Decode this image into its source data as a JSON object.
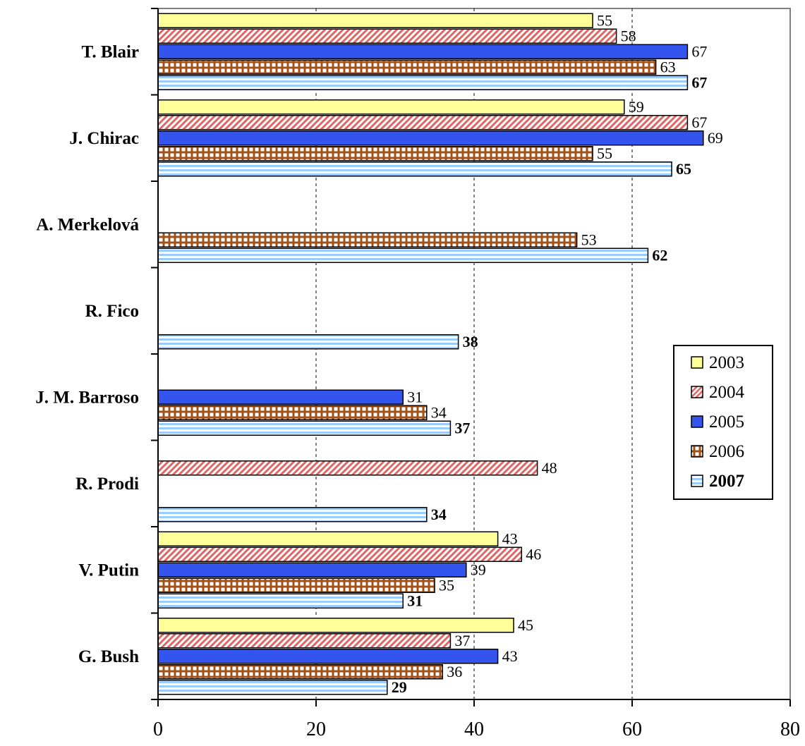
{
  "chart_data": {
    "type": "bar",
    "orientation": "horizontal",
    "title": "",
    "xlabel": "",
    "ylabel": "",
    "xlim": [
      0,
      80
    ],
    "x_ticks": [
      "0",
      "20",
      "40",
      "60",
      "80"
    ],
    "grid": "vertical dashed lines at 20, 40, 60",
    "legend_position": "right",
    "categories": [
      "T. Blair",
      "J. Chirac",
      "A. Merkelová",
      "R. Fico",
      "J. M. Barroso",
      "R. Prodi",
      "V. Putin",
      "G. Bush"
    ],
    "series": [
      {
        "name": "2003",
        "color": "#ffff99",
        "pattern": "solid",
        "values": [
          55,
          59,
          null,
          null,
          null,
          null,
          43,
          45
        ]
      },
      {
        "name": "2004",
        "color": "#e06666",
        "pattern": "diagonal-hatch",
        "values": [
          58,
          67,
          null,
          null,
          null,
          48,
          46,
          37
        ]
      },
      {
        "name": "2005",
        "color": "#3355ee",
        "pattern": "solid",
        "values": [
          67,
          69,
          null,
          null,
          31,
          null,
          39,
          43
        ]
      },
      {
        "name": "2006",
        "color": "#a0521a",
        "pattern": "grid",
        "values": [
          63,
          55,
          53,
          null,
          34,
          null,
          35,
          36
        ]
      },
      {
        "name": "2007",
        "color": "#99ccff",
        "pattern": "horizontal-stripes",
        "bold": true,
        "values": [
          67,
          65,
          62,
          38,
          37,
          34,
          31,
          29
        ]
      }
    ]
  }
}
